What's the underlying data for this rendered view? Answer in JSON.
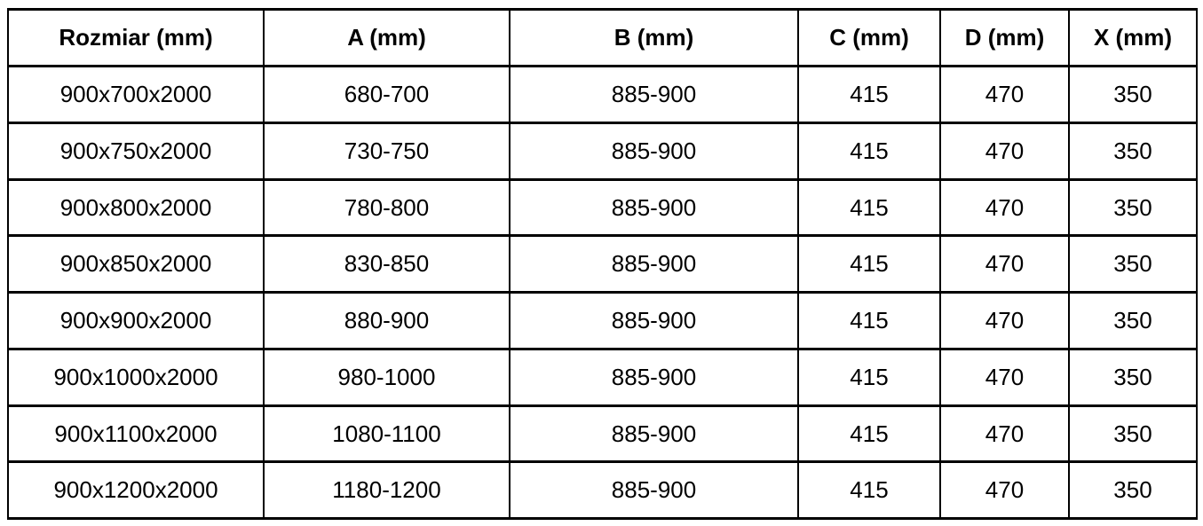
{
  "table": {
    "headers": [
      "Rozmiar (mm)",
      "A (mm)",
      "B (mm)",
      "C (mm)",
      "D (mm)",
      "X (mm)"
    ],
    "rows": [
      [
        "900x700x2000",
        "680-700",
        "885-900",
        "415",
        "470",
        "350"
      ],
      [
        "900x750x2000",
        "730-750",
        "885-900",
        "415",
        "470",
        "350"
      ],
      [
        "900x800x2000",
        "780-800",
        "885-900",
        "415",
        "470",
        "350"
      ],
      [
        "900x850x2000",
        "830-850",
        "885-900",
        "415",
        "470",
        "350"
      ],
      [
        "900x900x2000",
        "880-900",
        "885-900",
        "415",
        "470",
        "350"
      ],
      [
        "900x1000x2000",
        "980-1000",
        "885-900",
        "415",
        "470",
        "350"
      ],
      [
        "900x1100x2000",
        "1080-1100",
        "885-900",
        "415",
        "470",
        "350"
      ],
      [
        "900x1200x2000",
        "1180-1200",
        "885-900",
        "415",
        "470",
        "350"
      ]
    ]
  },
  "colors": {
    "border": "#000000",
    "text": "#000000",
    "background": "#ffffff"
  },
  "chart_data": {
    "type": "table",
    "columns": [
      "Rozmiar (mm)",
      "A (mm)",
      "B (mm)",
      "C (mm)",
      "D (mm)",
      "X (mm)"
    ],
    "rows": [
      [
        "900x700x2000",
        "680-700",
        "885-900",
        415,
        470,
        350
      ],
      [
        "900x750x2000",
        "730-750",
        "885-900",
        415,
        470,
        350
      ],
      [
        "900x800x2000",
        "780-800",
        "885-900",
        415,
        470,
        350
      ],
      [
        "900x850x2000",
        "830-850",
        "885-900",
        415,
        470,
        350
      ],
      [
        "900x900x2000",
        "880-900",
        "885-900",
        415,
        470,
        350
      ],
      [
        "900x1000x2000",
        "980-1000",
        "885-900",
        415,
        470,
        350
      ],
      [
        "900x1100x2000",
        "1080-1100",
        "885-900",
        415,
        470,
        350
      ],
      [
        "900x1200x2000",
        "1180-1200",
        "885-900",
        415,
        470,
        350
      ]
    ]
  }
}
